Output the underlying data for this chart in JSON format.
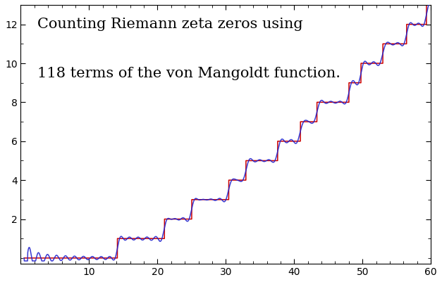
{
  "title_line1": "Counting Riemann zeta zeros using",
  "title_line2": "118 terms of the von Mangoldt function.",
  "xlim": [
    0,
    60
  ],
  "ylim": [
    -0.3,
    13.0
  ],
  "xticks": [
    10,
    20,
    30,
    40,
    50,
    60
  ],
  "yticks": [
    2,
    4,
    6,
    8,
    10,
    12
  ],
  "riemann_zeros": [
    14.1347,
    21.022,
    25.0109,
    30.4249,
    32.9351,
    37.5862,
    40.9187,
    43.3271,
    48.0052,
    49.7738,
    52.9703,
    56.4462,
    59.347
  ],
  "line_color_exact": "#cc0000",
  "line_color_approx": "#2222cc",
  "linewidth": 1.1,
  "title_fontsize": 15,
  "background_color": "#ffffff",
  "num_terms": 118
}
